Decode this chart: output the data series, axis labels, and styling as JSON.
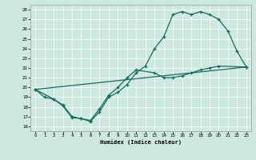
{
  "xlabel": "Humidex (Indice chaleur)",
  "bg_color": "#cce8e0",
  "line_color": "#1a6b5a",
  "xlim": [
    -0.5,
    23.5
  ],
  "ylim": [
    15.5,
    28.5
  ],
  "yticks": [
    16,
    17,
    18,
    19,
    20,
    21,
    22,
    23,
    24,
    25,
    26,
    27,
    28
  ],
  "xticks": [
    0,
    1,
    2,
    3,
    4,
    5,
    6,
    7,
    8,
    9,
    10,
    11,
    12,
    13,
    14,
    15,
    16,
    17,
    18,
    19,
    20,
    21,
    22,
    23
  ],
  "line1_x": [
    0,
    1,
    2,
    3,
    4,
    5,
    6,
    7,
    8,
    9,
    10,
    11,
    12,
    13,
    14,
    15,
    16,
    17,
    18,
    19,
    20,
    21,
    22,
    23
  ],
  "line1_y": [
    19.8,
    19.0,
    18.8,
    18.1,
    16.9,
    16.8,
    16.5,
    17.5,
    19.0,
    19.5,
    20.3,
    21.5,
    22.2,
    24.0,
    25.2,
    27.5,
    27.8,
    27.5,
    27.8,
    27.5,
    27.0,
    25.8,
    23.7,
    22.1
  ],
  "line2_x": [
    0,
    2,
    3,
    4,
    5,
    6,
    7,
    8,
    9,
    10,
    11,
    13,
    14,
    15,
    16,
    17,
    18,
    19,
    20,
    23
  ],
  "line2_y": [
    19.8,
    18.8,
    18.2,
    17.0,
    16.8,
    16.6,
    17.8,
    19.2,
    20.0,
    21.0,
    21.8,
    21.5,
    21.0,
    21.0,
    21.2,
    21.5,
    21.8,
    22.0,
    22.2,
    22.1
  ],
  "line3_x": [
    0,
    23
  ],
  "line3_y": [
    19.8,
    22.1
  ]
}
